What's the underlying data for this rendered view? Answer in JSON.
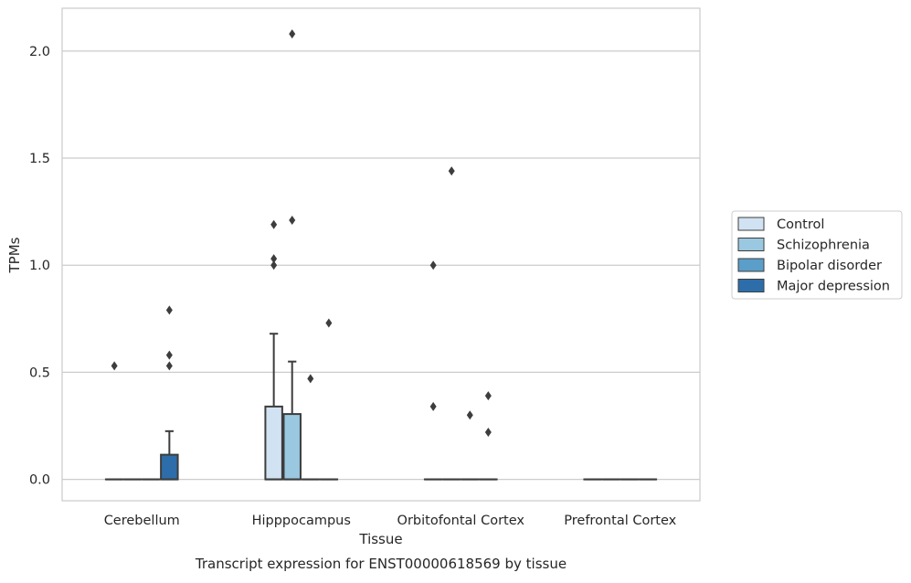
{
  "chart_data": {
    "type": "box",
    "title": "",
    "caption": "Transcript expression for ENST00000618569 by tissue",
    "xlabel": "Tissue",
    "ylabel": "TPMs",
    "ylim": [
      -0.1,
      2.2
    ],
    "yticks": [
      0.0,
      0.5,
      1.0,
      1.5,
      2.0
    ],
    "ytick_labels": [
      "0.0",
      "0.5",
      "1.0",
      "1.5",
      "2.0"
    ],
    "grid": true,
    "legend_position": "right",
    "categories": [
      "Cerebellum",
      "Hipppocampus",
      "Orbitofontal Cortex",
      "Prefrontal Cortex"
    ],
    "series": [
      {
        "name": "Control",
        "color": "#d1e2f2",
        "boxes": [
          {
            "q1": 0,
            "median": 0,
            "q3": 0,
            "whisker_low": 0,
            "whisker_high": 0,
            "outliers": [
              0.53
            ]
          },
          {
            "q1": 0,
            "median": 0,
            "q3": 0.34,
            "whisker_low": 0,
            "whisker_high": 0.68,
            "outliers": [
              1.0,
              1.03,
              1.19
            ]
          },
          {
            "q1": 0,
            "median": 0,
            "q3": 0,
            "whisker_low": 0,
            "whisker_high": 0,
            "outliers": [
              0.34,
              1.0
            ]
          },
          {
            "q1": 0,
            "median": 0,
            "q3": 0,
            "whisker_low": 0,
            "whisker_high": 0,
            "outliers": []
          }
        ]
      },
      {
        "name": "Schizophrenia",
        "color": "#9ac8e0",
        "boxes": [
          {
            "q1": 0,
            "median": 0,
            "q3": 0,
            "whisker_low": 0,
            "whisker_high": 0,
            "outliers": []
          },
          {
            "q1": 0,
            "median": 0,
            "q3": 0.305,
            "whisker_low": 0,
            "whisker_high": 0.55,
            "outliers": [
              1.21,
              2.08
            ]
          },
          {
            "q1": 0,
            "median": 0,
            "q3": 0,
            "whisker_low": 0,
            "whisker_high": 0,
            "outliers": [
              1.44
            ]
          },
          {
            "q1": 0,
            "median": 0,
            "q3": 0,
            "whisker_low": 0,
            "whisker_high": 0,
            "outliers": []
          }
        ]
      },
      {
        "name": "Bipolar disorder",
        "color": "#5a9ec9",
        "boxes": [
          {
            "q1": 0,
            "median": 0,
            "q3": 0,
            "whisker_low": 0,
            "whisker_high": 0,
            "outliers": []
          },
          {
            "q1": 0,
            "median": 0,
            "q3": 0,
            "whisker_low": 0,
            "whisker_high": 0,
            "outliers": [
              0.47
            ]
          },
          {
            "q1": 0,
            "median": 0,
            "q3": 0,
            "whisker_low": 0,
            "whisker_high": 0,
            "outliers": [
              0.3
            ]
          },
          {
            "q1": 0,
            "median": 0,
            "q3": 0,
            "whisker_low": 0,
            "whisker_high": 0,
            "outliers": []
          }
        ]
      },
      {
        "name": "Major depression",
        "color": "#2d6eaa",
        "boxes": [
          {
            "q1": 0,
            "median": 0,
            "q3": 0.115,
            "whisker_low": 0,
            "whisker_high": 0.225,
            "outliers": [
              0.53,
              0.58,
              0.79
            ]
          },
          {
            "q1": 0,
            "median": 0,
            "q3": 0,
            "whisker_low": 0,
            "whisker_high": 0,
            "outliers": [
              0.73
            ]
          },
          {
            "q1": 0,
            "median": 0,
            "q3": 0,
            "whisker_low": 0,
            "whisker_high": 0,
            "outliers": [
              0.22,
              0.39
            ]
          },
          {
            "q1": 0,
            "median": 0,
            "q3": 0,
            "whisker_low": 0,
            "whisker_high": 0,
            "outliers": []
          }
        ]
      }
    ]
  }
}
